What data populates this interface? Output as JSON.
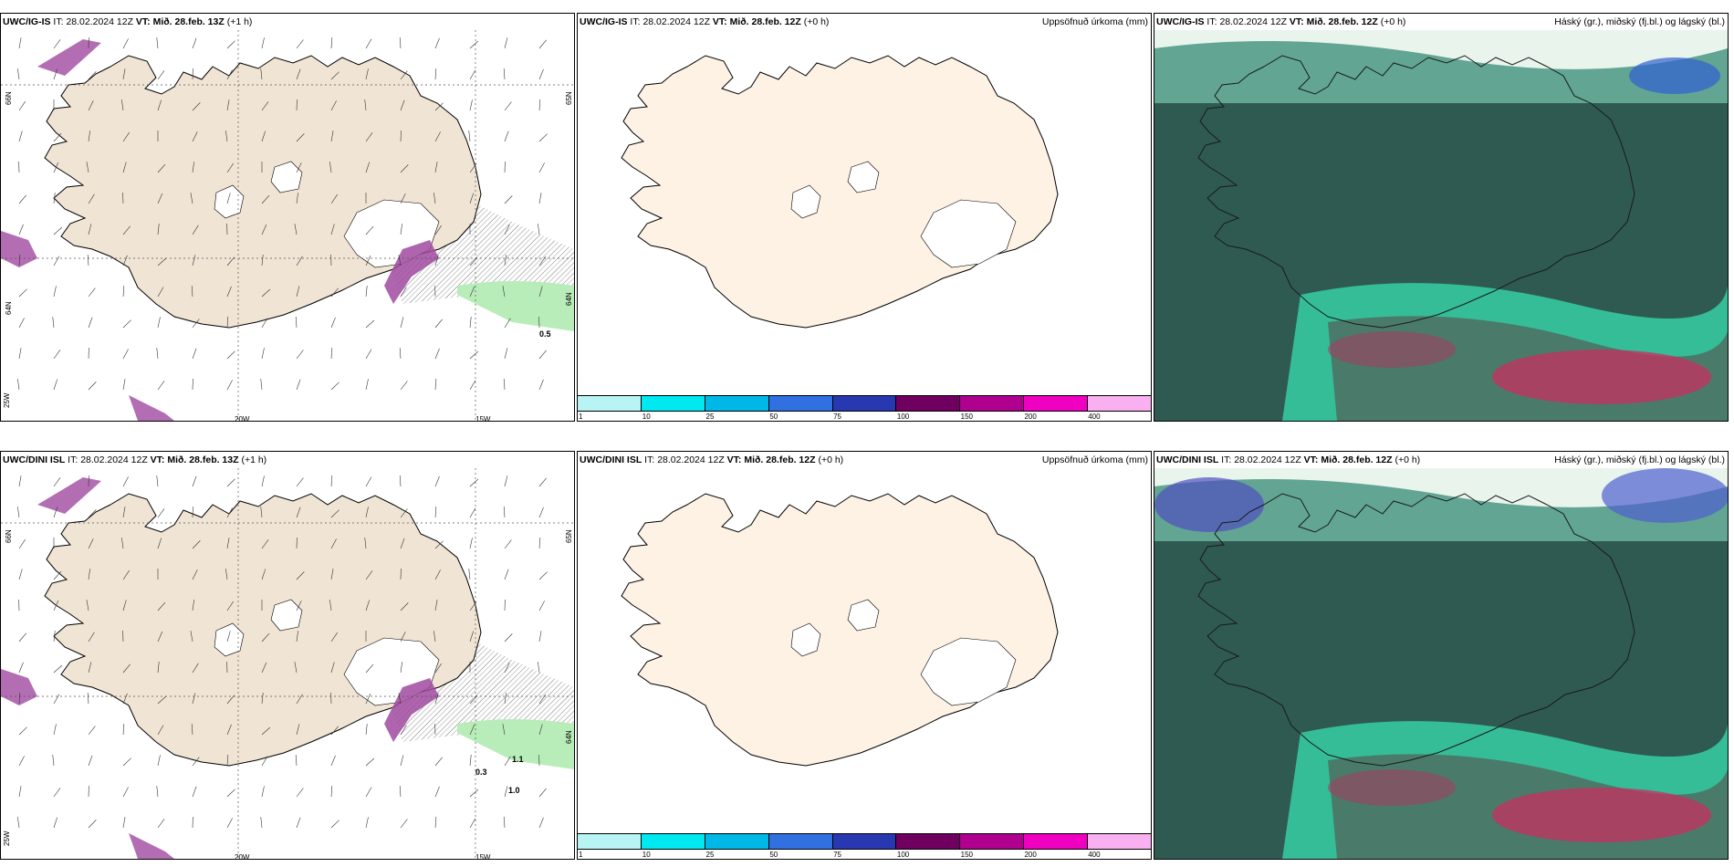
{
  "panels": [
    {
      "id": "top-left",
      "model": "UWC/IG-IS",
      "it_label": "IT:",
      "it": "28.02.2024 12Z",
      "vt_label": "VT:",
      "vt": "Mið. 28.feb. 13Z",
      "lead": "(+1 h)",
      "title": "",
      "labels": {
        "lon1": "20W",
        "lon2": "15W",
        "lat_left": "66N",
        "lat_left2": "64N",
        "lat_bottom": "25W",
        "lat_right": "65N",
        "lat_right2": "64N",
        "value1": "0.5"
      }
    },
    {
      "id": "top-middle",
      "model": "UWC/IG-IS",
      "it_label": "IT:",
      "it": "28.02.2024 12Z",
      "vt_label": "VT:",
      "vt": "Mið. 28.feb. 12Z",
      "lead": "(+0 h)",
      "title": "Uppsöfnuð úrkoma (mm)"
    },
    {
      "id": "top-right",
      "model": "UWC/IG-IS",
      "it_label": "IT:",
      "it": "28.02.2024 12Z",
      "vt_label": "VT:",
      "vt": "Mið. 28.feb. 12Z",
      "lead": "(+0 h)",
      "title": "Háský (gr.), miðský (fj.bl.) og lágský (bl.)"
    },
    {
      "id": "bottom-left",
      "model": "UWC/DINI ISL",
      "it_label": "IT:",
      "it": "28.02.2024 12Z",
      "vt_label": "VT:",
      "vt": "Mið. 28.feb. 13Z",
      "lead": "(+1 h)",
      "title": "",
      "labels": {
        "lon1": "20W",
        "lon2": "15W",
        "lat_left": "66N",
        "lat_bottom": "25W",
        "lat_right": "65N",
        "lat_right2": "64N",
        "value1": "0.3",
        "value2": "1.1",
        "value3": "1.0"
      }
    },
    {
      "id": "bottom-middle",
      "model": "UWC/DINI ISL",
      "it_label": "IT:",
      "it": "28.02.2024 12Z",
      "vt_label": "VT:",
      "vt": "Mið. 28.feb. 12Z",
      "lead": "(+0 h)",
      "title": "Uppsöfnuð úrkoma (mm)"
    },
    {
      "id": "bottom-right",
      "model": "UWC/DINI ISL",
      "it_label": "IT:",
      "it": "28.02.2024 12Z",
      "vt_label": "VT:",
      "vt": "Mið. 28.feb. 12Z",
      "lead": "(+0 h)",
      "title": "Háský (gr.), miðský (fj.bl.) og lágský (bl.)"
    }
  ],
  "colorbar": {
    "ticks": [
      "1",
      "10",
      "25",
      "50",
      "75",
      "100",
      "150",
      "200",
      "400"
    ],
    "colors": [
      "#b8f4f4",
      "#00e8f0",
      "#00b8e8",
      "#3070e0",
      "#2838b0",
      "#700060",
      "#b00090",
      "#f000c0",
      "#f8b0f0"
    ]
  },
  "colors": {
    "land": "#f0e4d4",
    "land_light": "#fdf2e4",
    "ice": "#ffffff",
    "rain_green": "#b8ecb8",
    "precip_purple": "#a04aa0",
    "cloud_low": "#2e5a52",
    "cloud_teal": "#36c8a0",
    "cloud_red": "#c83060"
  }
}
